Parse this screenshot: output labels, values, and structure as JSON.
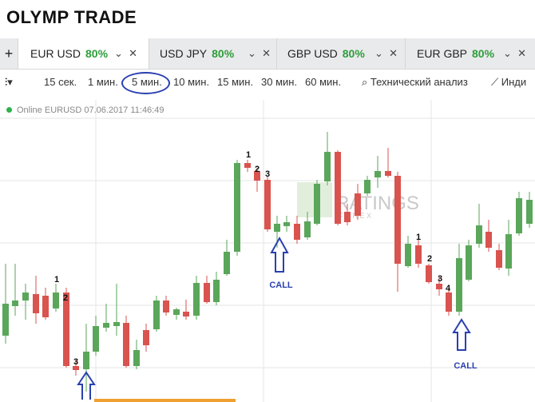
{
  "header": {
    "logo": "OLYMP TRADE"
  },
  "tabs": {
    "add": "+",
    "items": [
      {
        "pair": "EUR USD",
        "payout": "80%"
      },
      {
        "pair": "USD JPY",
        "payout": "80%"
      },
      {
        "pair": "GBP USD",
        "payout": "80%"
      },
      {
        "pair": "EUR GBP",
        "payout": "80%"
      }
    ]
  },
  "toolbar": {
    "timeframes": [
      "15 сек.",
      "1 мин.",
      "5 мин.",
      "10 мин.",
      "15 мин.",
      "30 мин.",
      "60 мин."
    ],
    "tools": [
      "Технический анализ",
      "Инди"
    ]
  },
  "chart": {
    "status": "Online EURUSD 07.06.2017 11:46:49",
    "left_marks": [
      "1",
      "2",
      "3"
    ],
    "top_marks": [
      "1",
      "2",
      "3"
    ],
    "right_marks": [
      "1",
      "2",
      "3",
      "4"
    ],
    "calls": [
      "CALL",
      "CALL"
    ],
    "watermark": [
      "RATINGS",
      "F O R E X"
    ]
  }
}
